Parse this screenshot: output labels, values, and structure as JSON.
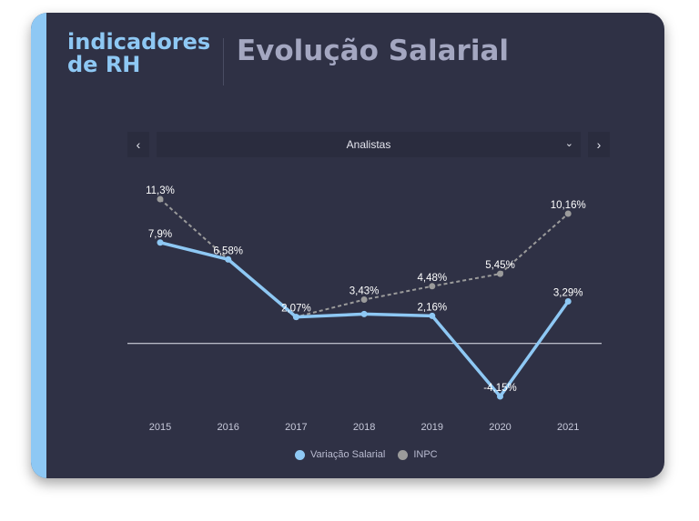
{
  "brand": {
    "line1": "indicadores",
    "line2": "de RH"
  },
  "title": "Evolução Salarial",
  "filter": {
    "selected": "Analistas",
    "prev_icon": "chevron-left-icon",
    "next_icon": "chevron-right-icon",
    "dropdown_icon": "chevron-down-icon"
  },
  "colors": {
    "accent": "#8ec8f4",
    "card": "#2f3145",
    "inpc": "#9b9b9b"
  },
  "chart_data": {
    "type": "line",
    "categories": [
      "2015",
      "2016",
      "2017",
      "2018",
      "2019",
      "2020",
      "2021"
    ],
    "series": [
      {
        "name": "Variação Salarial",
        "values": [
          7.9,
          6.58,
          2.07,
          2.3,
          2.16,
          -4.15,
          3.29
        ],
        "labels": [
          "7,9%",
          "6,58%",
          "2,07%",
          "",
          "2,16%",
          "-4,15%",
          "3,29%"
        ],
        "color": "#8ec8f4",
        "style": "solid"
      },
      {
        "name": "INPC",
        "values": [
          11.3,
          6.58,
          2.07,
          3.43,
          4.48,
          5.45,
          10.16
        ],
        "labels": [
          "11,3%",
          "",
          "",
          "3,43%",
          "4,48%",
          "5,45%",
          "10,16%"
        ],
        "color": "#9b9b9b",
        "style": "dashed"
      }
    ],
    "ylim": [
      -4.15,
      11.3
    ],
    "zero_line": true,
    "grid": false,
    "legend": "bottom-center"
  }
}
